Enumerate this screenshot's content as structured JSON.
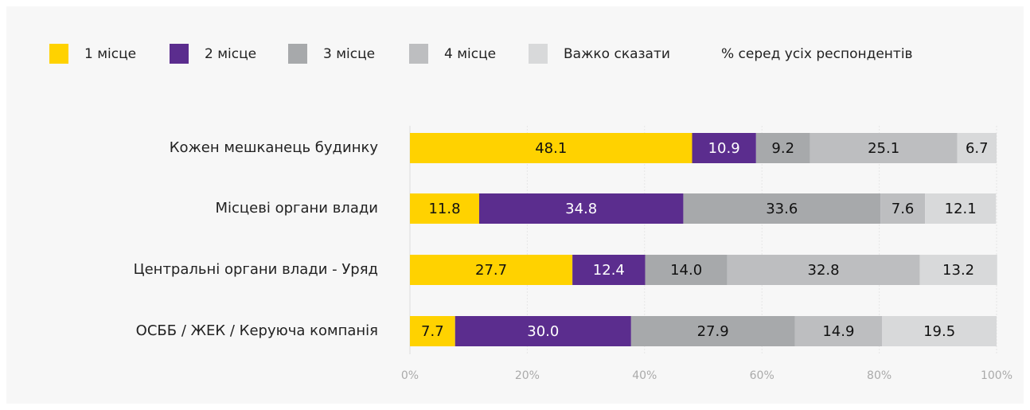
{
  "chart_data": {
    "type": "stacked-barh",
    "subtitle": "% серед усіх респондентів",
    "categories": [
      "Кожен мешканець будинку",
      "Місцеві органи влади",
      "Центральні органи влади - Уряд",
      "ОСББ / ЖЕК / Керуюча компанія"
    ],
    "series": [
      {
        "name": "1 місце",
        "color": "#ffd200",
        "values": [
          48.1,
          11.8,
          27.7,
          7.7
        ],
        "value_labels": [
          "48.1",
          "11.8",
          "27.7",
          "7.7"
        ]
      },
      {
        "name": "2 місце",
        "color": "#5b2d8e",
        "values": [
          10.9,
          34.8,
          12.4,
          30.0
        ],
        "value_labels": [
          "10.9",
          "34.8",
          "12.4",
          "30.0"
        ]
      },
      {
        "name": "3 місце",
        "color": "#a7a9ab",
        "values": [
          9.2,
          33.6,
          14.0,
          27.9
        ],
        "value_labels": [
          "9.2",
          "33.6",
          "14.0",
          "27.9"
        ]
      },
      {
        "name": "4 місце",
        "color": "#bdbec0",
        "values": [
          25.1,
          7.6,
          32.8,
          14.9
        ],
        "value_labels": [
          "25.1",
          "7.6",
          "32.8",
          "14.9"
        ]
      },
      {
        "name": "Важко сказати",
        "color": "#d8d9da",
        "values": [
          6.7,
          12.1,
          13.2,
          19.5
        ],
        "value_labels": [
          "6.7",
          "12.1",
          "13.2",
          "19.5"
        ]
      }
    ],
    "xlim": [
      0,
      100
    ],
    "xticks": [
      {
        "value": 0,
        "label": "0%"
      },
      {
        "value": 20,
        "label": "20%"
      },
      {
        "value": 40,
        "label": "40%"
      },
      {
        "value": 60,
        "label": "60%"
      },
      {
        "value": 80,
        "label": "80%"
      },
      {
        "value": 100,
        "label": "100%"
      }
    ],
    "grid": true,
    "legend": "top"
  }
}
